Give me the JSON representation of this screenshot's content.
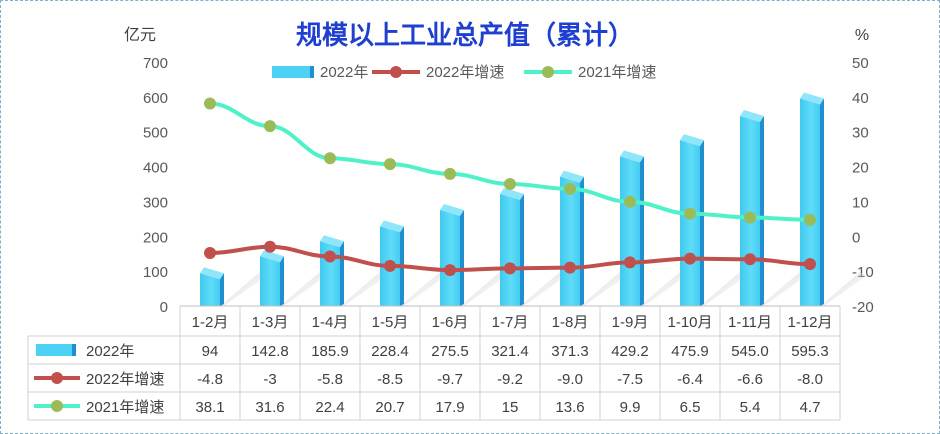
{
  "chart_data": {
    "type": "bar",
    "title": "规模以上工业总产值（累计）",
    "y_left_unit": "亿元",
    "y_right_unit": "%",
    "ylim_left": [
      0,
      700
    ],
    "ylim_right": [
      -20,
      50
    ],
    "left_ticks": [
      "0",
      "100",
      "200",
      "300",
      "400",
      "500",
      "600",
      "700"
    ],
    "right_ticks": [
      "-20",
      "-10",
      "0",
      "10",
      "20",
      "30",
      "40",
      "50"
    ],
    "categories": [
      "1-2月",
      "1-3月",
      "1-4月",
      "1-5月",
      "1-6月",
      "1-7月",
      "1-8月",
      "1-9月",
      "1-10月",
      "1-11月",
      "1-12月"
    ],
    "legend": [
      "2022年",
      "2022年增速",
      "2021年增速"
    ],
    "legend_position": "top-center",
    "series": [
      {
        "name": "2022年",
        "kind": "bar",
        "axis": "left",
        "color": "#4dd2f5",
        "values": [
          94,
          142.8,
          185.9,
          228.4,
          275.5,
          321.4,
          371.3,
          429.2,
          475.9,
          545.0,
          595.3
        ],
        "labels": [
          "94",
          "142.8",
          "185.9",
          "228.4",
          "275.5",
          "321.4",
          "371.3",
          "429.2",
          "475.9",
          "545.0",
          "595.3"
        ]
      },
      {
        "name": "2022年增速",
        "kind": "line",
        "axis": "right",
        "color": "#c0504d",
        "values": [
          -4.8,
          -3,
          -5.8,
          -8.5,
          -9.7,
          -9.2,
          -9.0,
          -7.5,
          -6.4,
          -6.6,
          -8.0
        ],
        "labels": [
          "-4.8",
          "-3",
          "-5.8",
          "-8.5",
          "-9.7",
          "-9.2",
          "-9.0",
          "-7.5",
          "-6.4",
          "-6.6",
          "-8.0"
        ]
      },
      {
        "name": "2021年增速",
        "kind": "line",
        "axis": "right",
        "color": "#4ff2c8",
        "marker_color": "#9bbb59",
        "values": [
          38.1,
          31.6,
          22.4,
          20.7,
          17.9,
          15,
          13.6,
          9.9,
          6.5,
          5.4,
          4.7
        ],
        "labels": [
          "38.1",
          "31.6",
          "22.4",
          "20.7",
          "17.9",
          "15",
          "13.6",
          "9.9",
          "6.5",
          "5.4",
          "4.7"
        ]
      }
    ],
    "grid": false,
    "data_table": true
  }
}
